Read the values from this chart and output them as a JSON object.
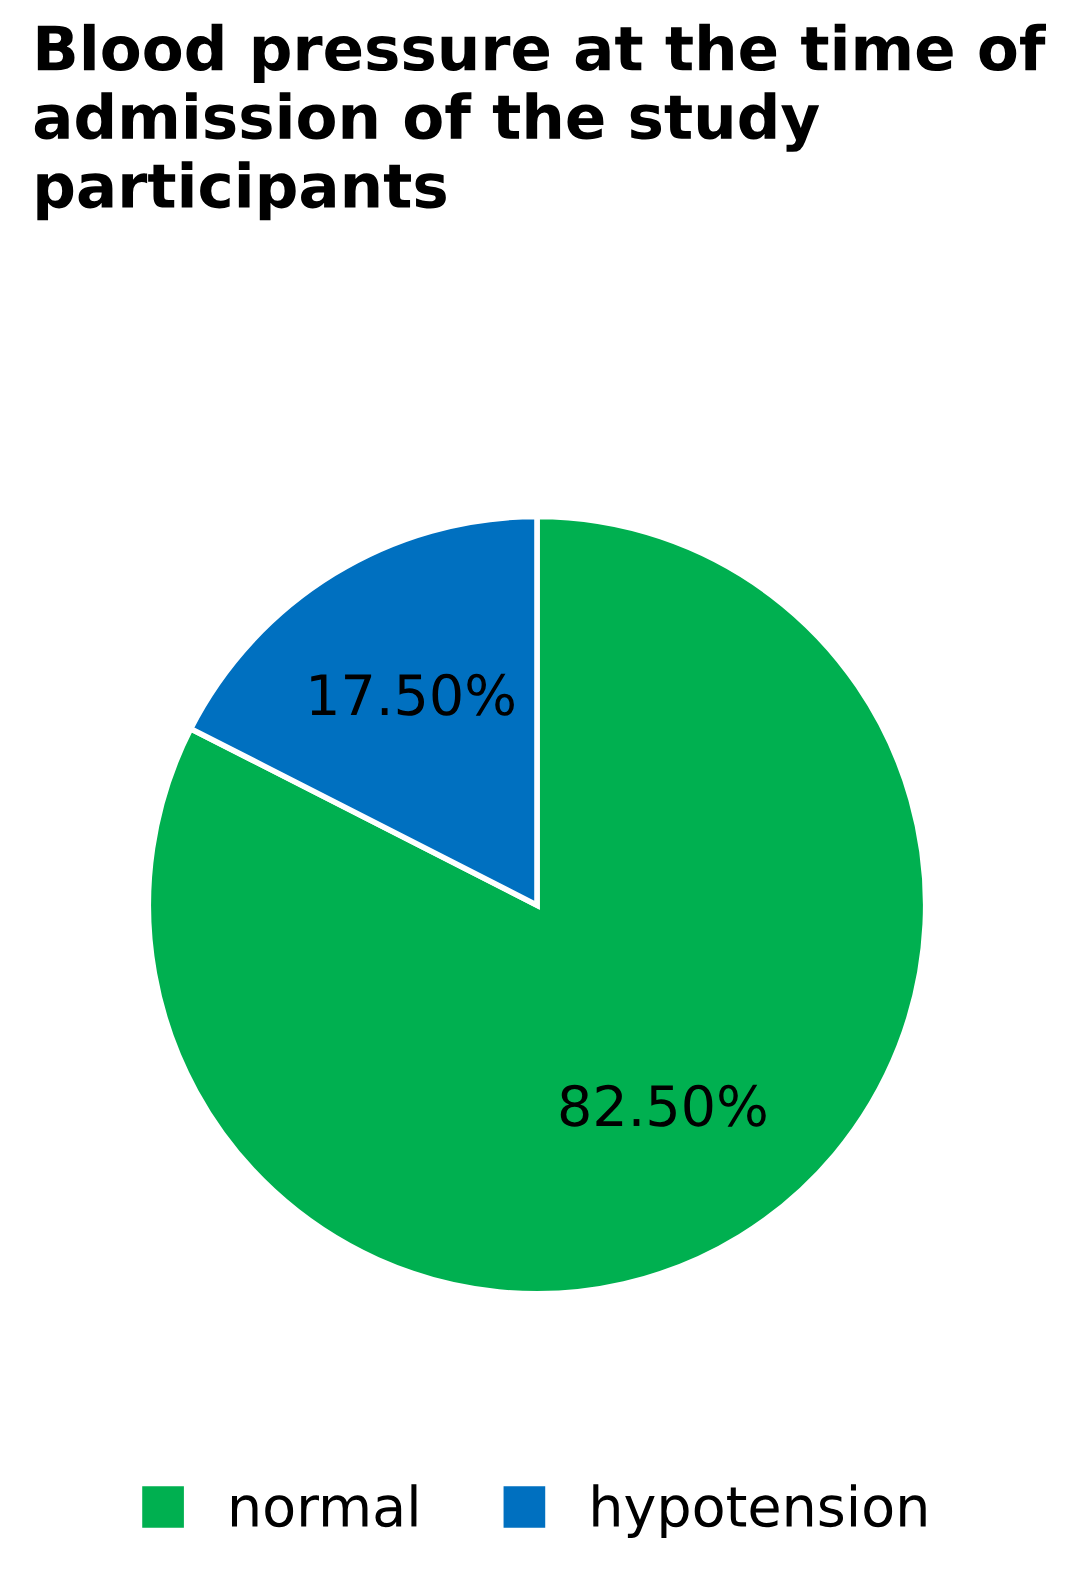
{
  "chart_data": {
    "type": "pie",
    "title": "Blood pressure at the time of admission of the study participants",
    "categories": [
      "normal",
      "hypotension"
    ],
    "values": [
      82.5,
      17.5
    ],
    "colors": [
      "#00b050",
      "#0070c0"
    ],
    "value_labels": [
      "82.50%",
      "17.50%"
    ],
    "legend": "bottom"
  }
}
